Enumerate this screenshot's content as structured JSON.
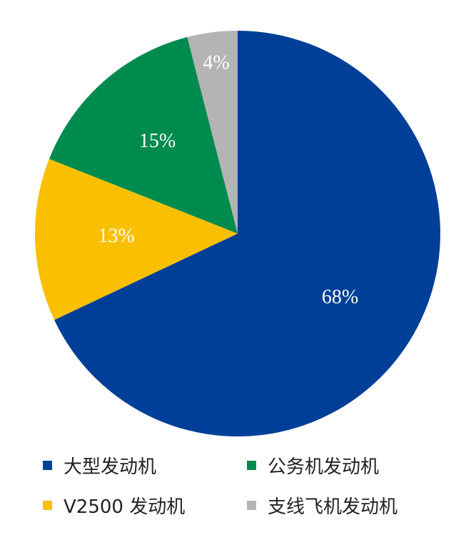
{
  "chart_data": {
    "type": "pie",
    "title": "",
    "slices": [
      {
        "label": "大型发动机",
        "value": 68,
        "value_label": "68%",
        "color": "#003f98"
      },
      {
        "label": "公务机发动机",
        "value": 15,
        "value_label": "15%",
        "color": "#008b4e"
      },
      {
        "label": "V2500 发动机",
        "value": 13,
        "value_label": "13%",
        "color": "#fac000"
      },
      {
        "label": "支线飞机发动机",
        "value": 4,
        "value_label": "4%",
        "color": "#b4b4b4"
      }
    ],
    "slice_order": [
      "大型发动机",
      "V2500 发动机",
      "公务机发动机",
      "支线飞机发动机"
    ],
    "start_angle": "12 o'clock",
    "direction": "clockwise",
    "legend_position": "bottom",
    "legend_order": [
      "大型发动机",
      "公务机发动机",
      "V2500 发动机",
      "支线飞机发动机"
    ]
  }
}
